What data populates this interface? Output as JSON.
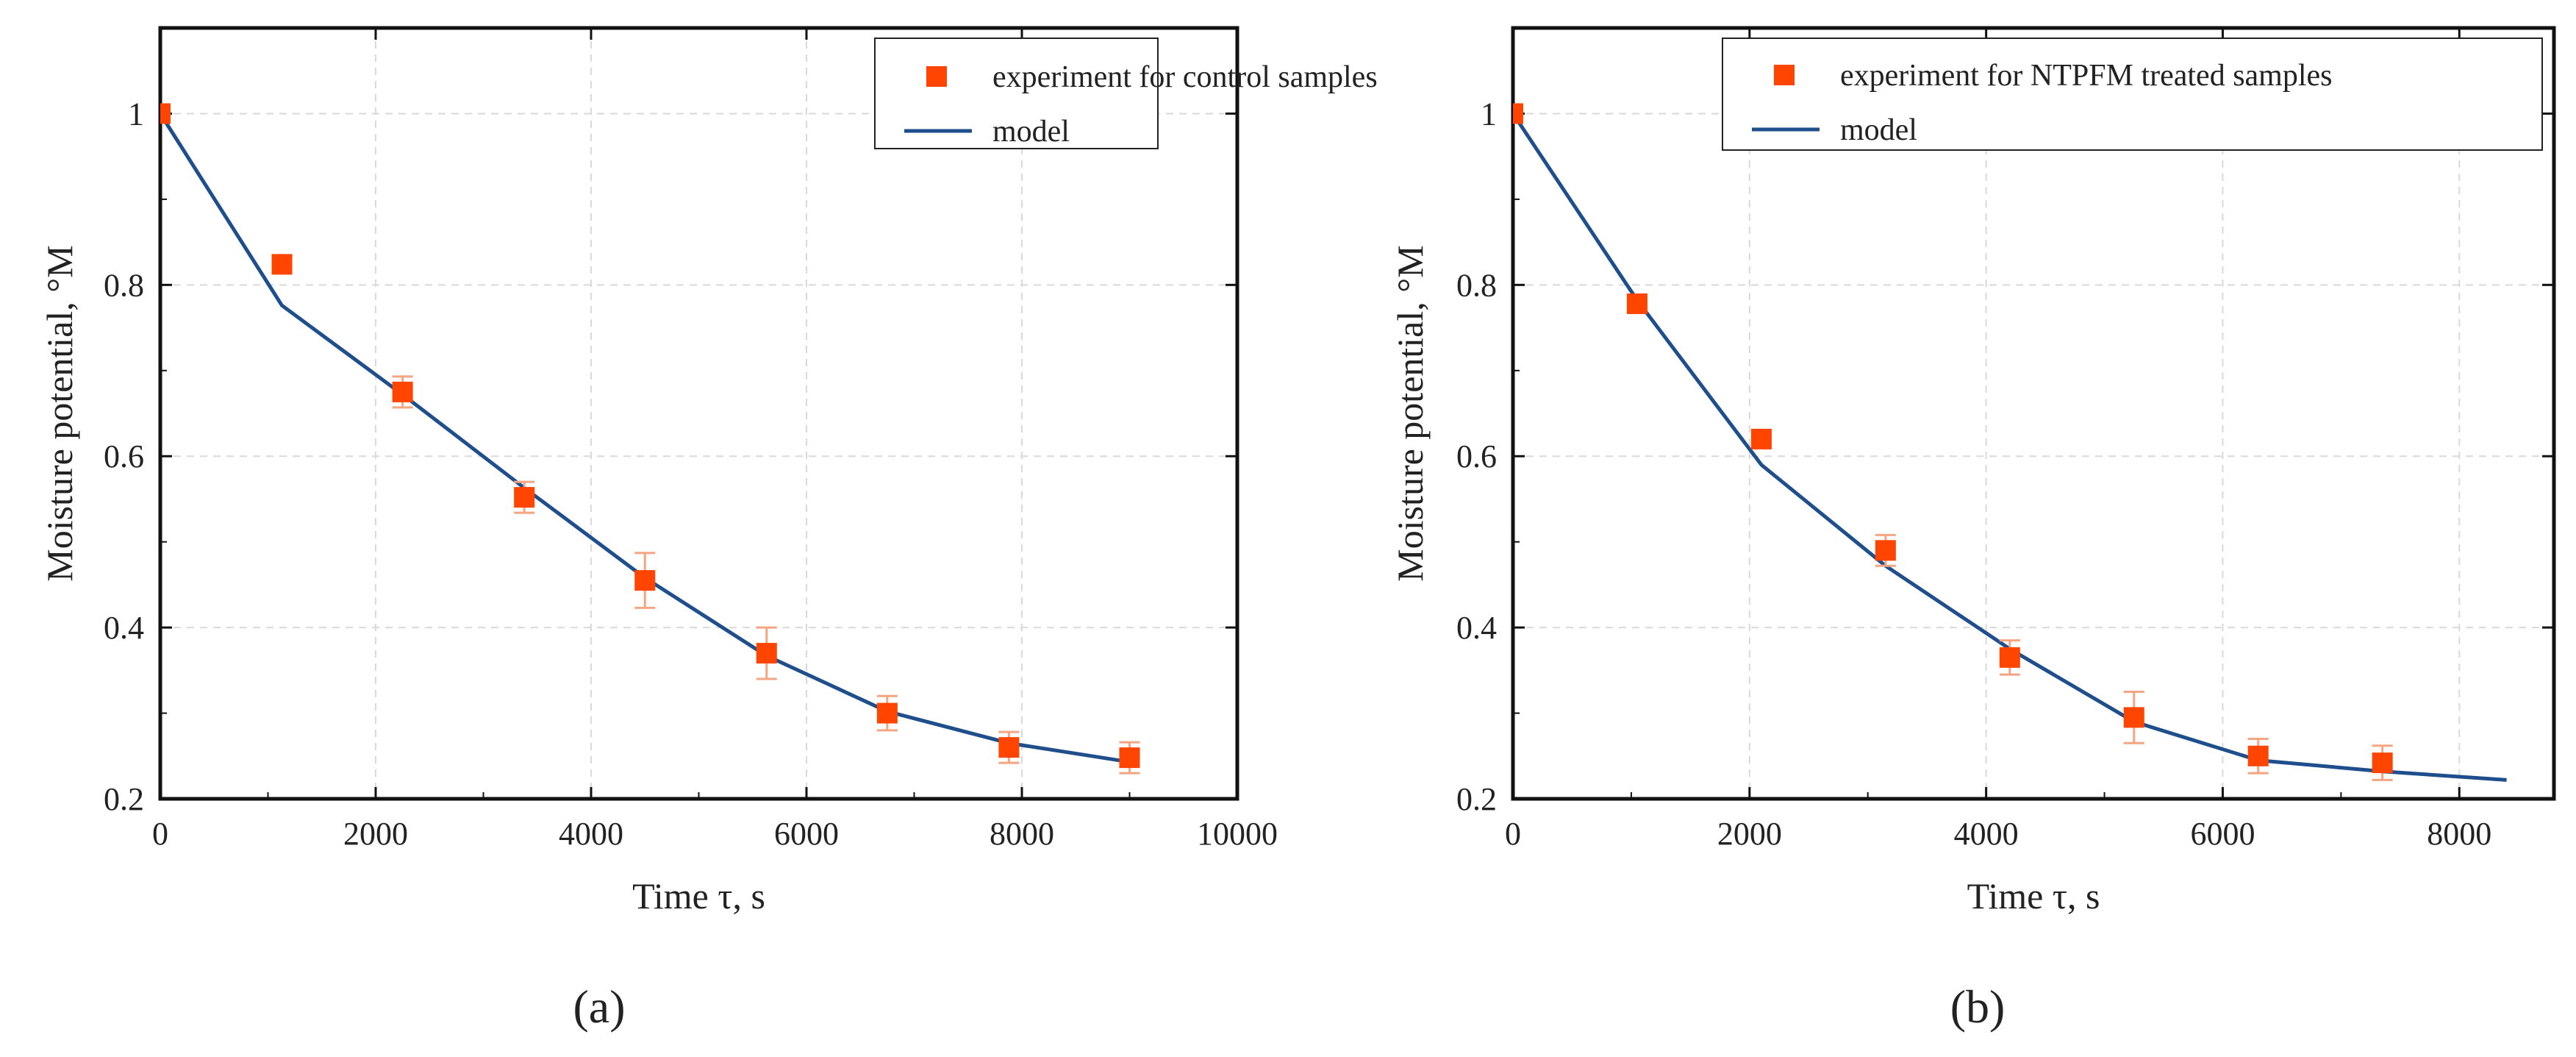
{
  "colors": {
    "marker": "#ff4500",
    "errorbar": "#f4a582",
    "model_line": "#1f4e8c",
    "frame": "#111111",
    "grid": "#d9d9d9"
  },
  "chart_data": [
    {
      "id": "a",
      "type": "scatter",
      "panel_label": "(a)",
      "xlabel": "Time τ, s",
      "ylabel": "Moisture potential, °M",
      "xlim": [
        0,
        10000
      ],
      "ylim": [
        0.2,
        1.1
      ],
      "xticks": [
        0,
        2000,
        4000,
        6000,
        8000,
        10000
      ],
      "xtick_labels": [
        "0",
        "2000",
        "4000",
        "6000",
        "8000",
        "10000"
      ],
      "yticks": [
        0.2,
        0.4,
        0.6,
        0.8,
        1.0
      ],
      "ytick_labels": [
        "0.2",
        "0.4",
        "0.6",
        "0.8",
        "1"
      ],
      "grid": true,
      "legend_position": "top-right",
      "series": [
        {
          "name": "experiment for control samples",
          "kind": "markers",
          "x": [
            0,
            1130,
            2250,
            3380,
            4500,
            5630,
            6750,
            7880,
            9000
          ],
          "y": [
            1.0,
            0.824,
            0.675,
            0.552,
            0.455,
            0.37,
            0.3,
            0.26,
            0.248
          ],
          "err": [
            0,
            0,
            0.018,
            0.018,
            0.032,
            0.03,
            0.02,
            0.018,
            0.018
          ]
        },
        {
          "name": "model",
          "kind": "line",
          "x": [
            0,
            1130,
            2250,
            3380,
            4500,
            5630,
            6750,
            7880,
            9000
          ],
          "y": [
            1.0,
            0.776,
            0.672,
            0.563,
            0.458,
            0.367,
            0.302,
            0.265,
            0.243
          ]
        }
      ]
    },
    {
      "id": "b",
      "type": "scatter",
      "panel_label": "(b)",
      "xlabel": "Time τ, s",
      "ylabel": "Moisture potential, °M",
      "xlim": [
        0,
        8800
      ],
      "ylim": [
        0.2,
        1.1
      ],
      "xticks": [
        0,
        2000,
        4000,
        6000,
        8000
      ],
      "xtick_labels": [
        "0",
        "2000",
        "4000",
        "6000",
        "8000"
      ],
      "yticks": [
        0.2,
        0.4,
        0.6,
        0.8,
        1.0
      ],
      "ytick_labels": [
        "0.2",
        "0.4",
        "0.6",
        "0.8",
        "1"
      ],
      "grid": true,
      "legend_position": "top-right",
      "series": [
        {
          "name": "experiment for NTPFM  treated samples",
          "kind": "markers",
          "x": [
            0,
            1050,
            2100,
            3150,
            4200,
            5250,
            6300,
            7350
          ],
          "y": [
            1.0,
            0.778,
            0.62,
            0.49,
            0.365,
            0.295,
            0.25,
            0.242
          ],
          "err": [
            0,
            0.008,
            0.008,
            0.018,
            0.02,
            0.03,
            0.02,
            0.02
          ]
        },
        {
          "name": "model",
          "kind": "line",
          "x": [
            0,
            1050,
            2100,
            3150,
            4200,
            5250,
            6300,
            7350,
            8400
          ],
          "y": [
            1.0,
            0.782,
            0.59,
            0.472,
            0.375,
            0.29,
            0.245,
            0.232,
            0.222
          ]
        }
      ]
    }
  ]
}
